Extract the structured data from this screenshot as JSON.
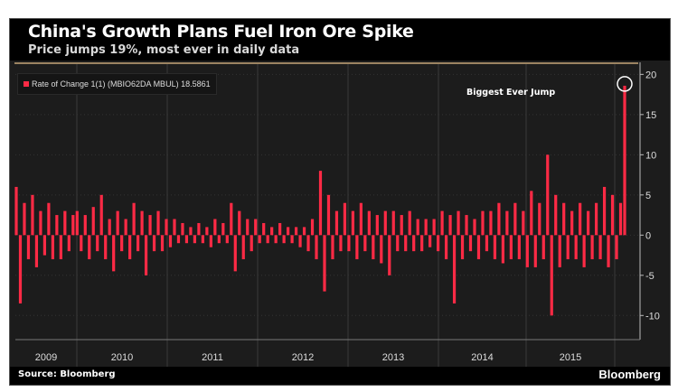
{
  "header": {
    "title": "China's Growth Plans Fuel Iron Ore Spike",
    "subtitle": "Price jumps 19%, most ever in daily data"
  },
  "footer": {
    "source": "Source: Bloomberg",
    "brand": "Bloomberg"
  },
  "chart_data": {
    "type": "bar",
    "legend": "Rate of Change 1(1) (MBIO62DA MBUL) 18.5861",
    "legend_position": "top-left",
    "annotation": "Biggest Ever Jump",
    "color": "#ff2a45",
    "ylim": [
      -13,
      21.5
    ],
    "yticks": [
      20,
      15,
      10,
      5,
      0,
      -5,
      -10
    ],
    "xticks": [
      "2009",
      "2010",
      "2011",
      "2012",
      "2013",
      "2014",
      "2015"
    ],
    "grid": true,
    "x_range": [
      "2008-10",
      "2016-03"
    ],
    "values": [
      6,
      -8.5,
      4,
      -3,
      5,
      -4,
      3,
      -2.5,
      4,
      -3,
      2.5,
      -3,
      3,
      -2,
      2.5,
      3,
      -2,
      2.5,
      -3,
      3.5,
      -2,
      5,
      -3,
      2,
      -4.5,
      3,
      -2,
      2,
      -3,
      4,
      -2,
      3,
      -5,
      2.5,
      -2,
      3,
      -2,
      2,
      -1.5,
      2,
      -1,
      1.5,
      -1,
      1,
      -1,
      1.5,
      -1,
      1,
      -1.5,
      2,
      -1,
      1.5,
      -1,
      4,
      -4.5,
      3,
      -3,
      2,
      -2,
      2,
      -1,
      1.5,
      -1,
      1,
      -1,
      1.5,
      -1,
      1,
      -1,
      1,
      -1.5,
      1,
      -2,
      2,
      -3,
      8,
      -7,
      5,
      -3,
      3,
      -2,
      4,
      -2,
      3,
      -3,
      4,
      -2,
      3,
      -3,
      2.5,
      -3.5,
      3,
      -5,
      3,
      -2,
      2.5,
      -2,
      3,
      -2,
      2,
      -2,
      2,
      -1.5,
      2,
      -2,
      3,
      -3,
      2.5,
      -8.5,
      3,
      -3,
      2.5,
      -2,
      2,
      -3,
      3,
      -2,
      3,
      -3,
      4,
      -3.5,
      3,
      -3,
      4,
      -3,
      3,
      -4,
      5.5,
      -4,
      4,
      -3,
      10,
      -10,
      5,
      -4,
      4,
      -3,
      3,
      -3,
      4,
      -4,
      3,
      -3,
      4,
      -3,
      6,
      -4,
      5,
      -3,
      4,
      18.5861
    ]
  }
}
